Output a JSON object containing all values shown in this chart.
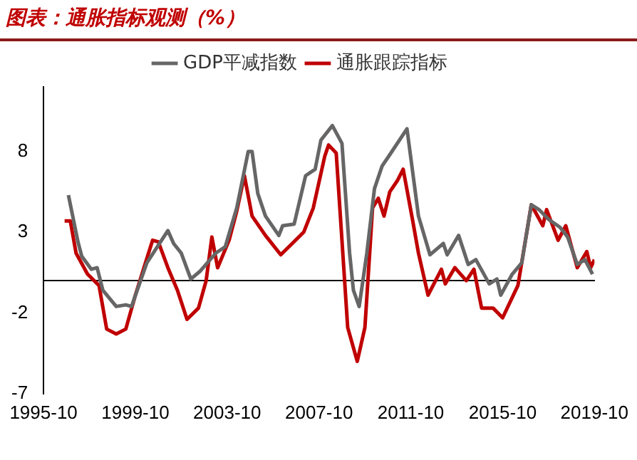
{
  "chart_data": {
    "type": "line",
    "title": "图表：通胀指标观测（%）",
    "legend": "top",
    "marker": "none",
    "line_style": "solid",
    "grid": false,
    "xlim": [
      "1995-10",
      "2019-10"
    ],
    "xticks": [
      "1995-10",
      "1999-10",
      "2003-10",
      "2007-10",
      "2011-10",
      "2015-10",
      "2019-10"
    ],
    "ylim": [
      -7,
      12
    ],
    "yticks": [
      -7,
      -2,
      3,
      8
    ],
    "series": [
      {
        "name": "GDP平减指数",
        "color": "#666666",
        "x": [
          "1996-11",
          "1997-04",
          "1997-06",
          "1997-11",
          "1998-02",
          "1998-05",
          "1998-12",
          "1999-05",
          "1999-08",
          "2000-04",
          "2001-03",
          "2001-06",
          "2001-10",
          "2002-03",
          "2002-08",
          "2003-04",
          "2003-09",
          "2004-03",
          "2004-09",
          "2004-11",
          "2005-02",
          "2005-06",
          "2006-01",
          "2006-03",
          "2006-09",
          "2007-03",
          "2007-08",
          "2007-11",
          "2008-05",
          "2008-10",
          "2009-02",
          "2009-04",
          "2009-07",
          "2009-11",
          "2010-03",
          "2010-07",
          "2010-11",
          "2011-08",
          "2012-02",
          "2012-08",
          "2013-03",
          "2013-05",
          "2013-11",
          "2014-04",
          "2014-08",
          "2015-03",
          "2015-07",
          "2015-09",
          "2016-03",
          "2016-08",
          "2017-01",
          "2017-05",
          "2017-10",
          "2018-04",
          "2018-08",
          "2019-01",
          "2019-05",
          "2019-09"
        ],
        "values": [
          5.3,
          2.4,
          1.5,
          0.7,
          0.8,
          -0.6,
          -1.6,
          -1.5,
          -1.6,
          1.1,
          3.1,
          2.3,
          1.7,
          0.1,
          0.6,
          1.7,
          2.1,
          4.5,
          8.0,
          8.0,
          5.4,
          4.0,
          2.8,
          3.4,
          3.5,
          6.5,
          6.9,
          8.7,
          9.6,
          8.5,
          1.7,
          -0.6,
          -1.6,
          1.7,
          5.7,
          7.1,
          7.8,
          9.4,
          4.0,
          1.6,
          2.3,
          1.6,
          2.8,
          1.0,
          1.3,
          -0.2,
          0.1,
          -0.9,
          0.4,
          1.1,
          4.7,
          4.4,
          3.8,
          3.3,
          2.7,
          1.0,
          1.3,
          0.4
        ]
      },
      {
        "name": "通胀跟踪指标",
        "color": "#c00000",
        "x": [
          "1996-09",
          "1996-12",
          "1997-03",
          "1997-09",
          "1998-03",
          "1998-07",
          "1998-12",
          "1999-05",
          "1999-10",
          "2000-03",
          "2000-07",
          "2000-10",
          "2001-03",
          "2001-08",
          "2002-01",
          "2002-07",
          "2002-11",
          "2003-02",
          "2003-05",
          "2003-11",
          "2004-03",
          "2004-07",
          "2004-11",
          "2005-06",
          "2006-02",
          "2006-08",
          "2007-02",
          "2007-07",
          "2008-01",
          "2008-03",
          "2008-07",
          "2009-01",
          "2009-06",
          "2009-10",
          "2010-02",
          "2010-05",
          "2010-08",
          "2010-11",
          "2011-03",
          "2011-06",
          "2011-11",
          "2012-02",
          "2012-07",
          "2013-02",
          "2013-04",
          "2013-09",
          "2014-03",
          "2014-07",
          "2014-11",
          "2015-05",
          "2015-10",
          "2016-06",
          "2017-01",
          "2017-07",
          "2017-09",
          "2018-03",
          "2018-07",
          "2019-01",
          "2019-06",
          "2019-08",
          "2019-10"
        ],
        "values": [
          3.7,
          3.7,
          1.7,
          0.4,
          -0.3,
          -3.0,
          -3.3,
          -3.0,
          -0.9,
          1.0,
          2.5,
          2.4,
          0.8,
          -0.6,
          -2.4,
          -1.7,
          0.0,
          2.7,
          0.8,
          2.5,
          4.3,
          6.5,
          4.0,
          2.8,
          1.6,
          2.3,
          3.0,
          4.5,
          7.7,
          8.4,
          7.9,
          -2.9,
          -5.0,
          -2.9,
          4.5,
          5.1,
          4.0,
          5.5,
          6.2,
          6.9,
          3.7,
          1.7,
          -0.9,
          0.7,
          -0.2,
          0.8,
          0.0,
          0.7,
          -1.7,
          -1.7,
          -2.3,
          -0.3,
          4.7,
          3.4,
          4.4,
          2.5,
          3.4,
          0.8,
          1.8,
          0.8,
          1.3
        ]
      }
    ]
  }
}
